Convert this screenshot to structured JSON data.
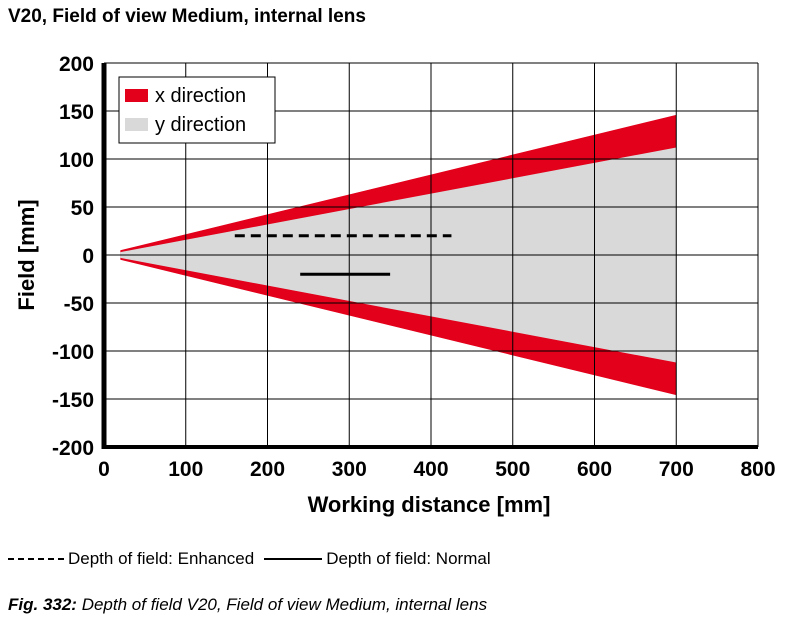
{
  "page": {
    "title": "V20, Field of view Medium, internal lens",
    "dof_legend": {
      "enhanced_label": "Depth of field: Enhanced",
      "normal_label": "Depth of field: Normal"
    },
    "caption": {
      "label": "Fig. 332:",
      "text": "Depth of field V20, Field of view Medium, internal lens"
    }
  },
  "chart_data": {
    "type": "area",
    "title": "",
    "xlabel": "Working distance [mm]",
    "ylabel": "Field [mm]",
    "xlim": [
      0,
      800
    ],
    "ylim": [
      -200,
      200
    ],
    "xticks": [
      0,
      100,
      200,
      300,
      400,
      500,
      600,
      700,
      800
    ],
    "yticks": [
      200,
      150,
      100,
      50,
      0,
      -50,
      -100,
      -150,
      -200
    ],
    "grid": true,
    "legend_position": "top-left",
    "series": [
      {
        "name": "x direction",
        "color": "#e2001a",
        "x": [
          20,
          700
        ],
        "upper": [
          5,
          146
        ],
        "lower": [
          -5,
          -146
        ]
      },
      {
        "name": "y direction",
        "color": "#d9d9d9",
        "x": [
          20,
          700
        ],
        "upper": [
          3,
          112
        ],
        "lower": [
          -3,
          -112
        ]
      }
    ],
    "depth_of_field": [
      {
        "name": "Depth of field: Enhanced",
        "style": "dashed",
        "x": [
          160,
          425
        ],
        "y": 20
      },
      {
        "name": "Depth of field: Normal",
        "style": "solid",
        "x": [
          240,
          350
        ],
        "y": -20
      }
    ]
  }
}
